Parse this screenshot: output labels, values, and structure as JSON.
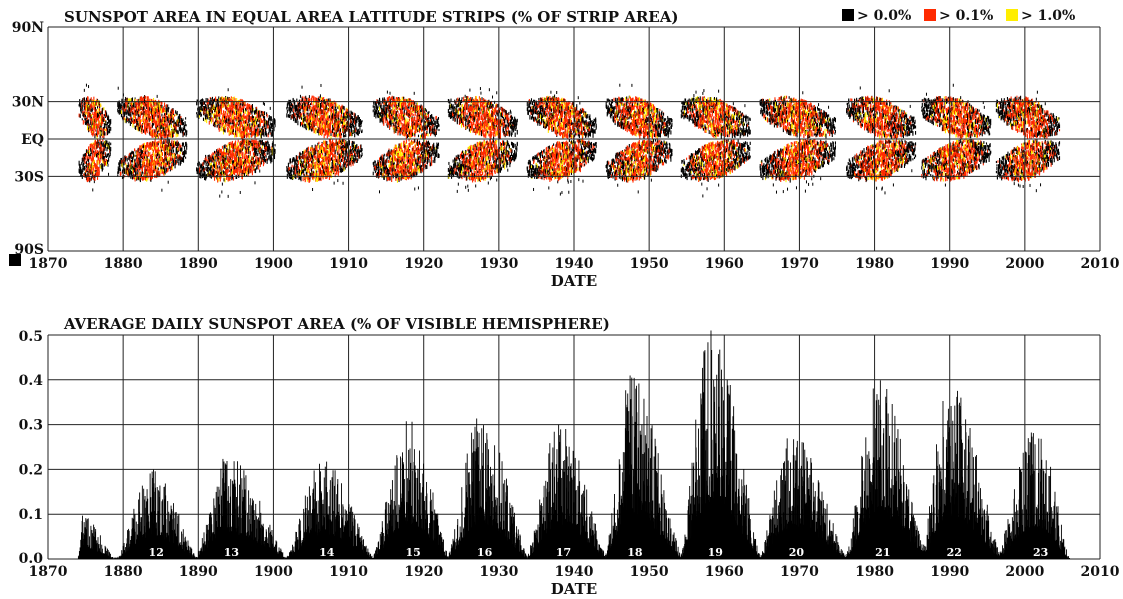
{
  "chart_data": [
    {
      "type": "heatmap",
      "title": "SUNSPOT AREA IN EQUAL AREA LATITUDE STRIPS (% OF STRIP AREA)",
      "xlabel": "DATE",
      "ylabel": "",
      "xlim": [
        1870,
        2010
      ],
      "ylim": [
        -90,
        90
      ],
      "x_ticks": [
        1870,
        1880,
        1890,
        1900,
        1910,
        1920,
        1930,
        1940,
        1950,
        1960,
        1970,
        1980,
        1990,
        2000,
        2010
      ],
      "y_ticks": [
        {
          "value": 90,
          "label": "90N"
        },
        {
          "value": 30,
          "label": "30N"
        },
        {
          "value": 0,
          "label": "EQ"
        },
        {
          "value": -30,
          "label": "30S"
        },
        {
          "value": -90,
          "label": "90S"
        }
      ],
      "legend": {
        "placement": "top-right",
        "entries": [
          {
            "label": "> 0.0%",
            "color": "#000000"
          },
          {
            "label": "> 0.1%",
            "color": "#ff2a00"
          },
          {
            "label": "> 1.0%",
            "color": "#ffee00"
          }
        ]
      },
      "grid": true,
      "butterfly_wings": [
        {
          "start": 1874.0,
          "end": 1879.0
        },
        {
          "start": 1879.0,
          "end": 1890.0
        },
        {
          "start": 1889.5,
          "end": 1902.0
        },
        {
          "start": 1901.5,
          "end": 1913.5
        },
        {
          "start": 1913.0,
          "end": 1923.5
        },
        {
          "start": 1923.0,
          "end": 1934.0
        },
        {
          "start": 1933.5,
          "end": 1944.5
        },
        {
          "start": 1944.0,
          "end": 1954.5
        },
        {
          "start": 1954.0,
          "end": 1965.0
        },
        {
          "start": 1964.5,
          "end": 1976.5
        },
        {
          "start": 1976.0,
          "end": 1987.0
        },
        {
          "start": 1986.0,
          "end": 1997.0
        },
        {
          "start": 1996.0,
          "end": 2006.0
        }
      ]
    },
    {
      "type": "bar",
      "title": "AVERAGE DAILY SUNSPOT AREA (% OF VISIBLE HEMISPHERE)",
      "xlabel": "DATE",
      "ylabel": "",
      "xlim": [
        1870,
        2010
      ],
      "ylim": [
        0,
        0.5
      ],
      "x_ticks": [
        1870,
        1880,
        1890,
        1900,
        1910,
        1920,
        1930,
        1940,
        1950,
        1960,
        1970,
        1980,
        1990,
        2000,
        2010
      ],
      "y_ticks": [
        0.0,
        0.1,
        0.2,
        0.3,
        0.4,
        0.5
      ],
      "y_tick_labels": [
        "0.0",
        "0.1",
        "0.2",
        "0.3",
        "0.4",
        "0.5"
      ],
      "grid": true,
      "cycles": [
        {
          "label": "",
          "start": 1874.0,
          "end": 1879.0,
          "peak_year": 1874.4,
          "peak_value": 0.1
        },
        {
          "label": "12",
          "start": 1879.0,
          "end": 1890.0,
          "peak_year": 1883.8,
          "peak_value": 0.2
        },
        {
          "label": "13",
          "start": 1889.5,
          "end": 1902.0,
          "peak_year": 1893.8,
          "peak_value": 0.23
        },
        {
          "label": "14",
          "start": 1901.5,
          "end": 1913.5,
          "peak_year": 1906.5,
          "peak_value": 0.22
        },
        {
          "label": "15",
          "start": 1913.0,
          "end": 1923.5,
          "peak_year": 1918.0,
          "peak_value": 0.31
        },
        {
          "label": "16",
          "start": 1923.0,
          "end": 1934.0,
          "peak_year": 1927.5,
          "peak_value": 0.32
        },
        {
          "label": "17",
          "start": 1933.5,
          "end": 1944.5,
          "peak_year": 1938.0,
          "peak_value": 0.3
        },
        {
          "label": "18",
          "start": 1944.0,
          "end": 1954.5,
          "peak_year": 1947.5,
          "peak_value": 0.41
        },
        {
          "label": "19",
          "start": 1954.0,
          "end": 1965.0,
          "peak_year": 1958.2,
          "peak_value": 0.51
        },
        {
          "label": "20",
          "start": 1964.5,
          "end": 1976.5,
          "peak_year": 1969.0,
          "peak_value": 0.28
        },
        {
          "label": "21",
          "start": 1976.0,
          "end": 1987.0,
          "peak_year": 1980.5,
          "peak_value": 0.4
        },
        {
          "label": "22",
          "start": 1986.0,
          "end": 1997.0,
          "peak_year": 1990.0,
          "peak_value": 0.39
        },
        {
          "label": "23",
          "start": 1996.0,
          "end": 2006.0,
          "peak_year": 2001.5,
          "peak_value": 0.29
        }
      ]
    }
  ]
}
